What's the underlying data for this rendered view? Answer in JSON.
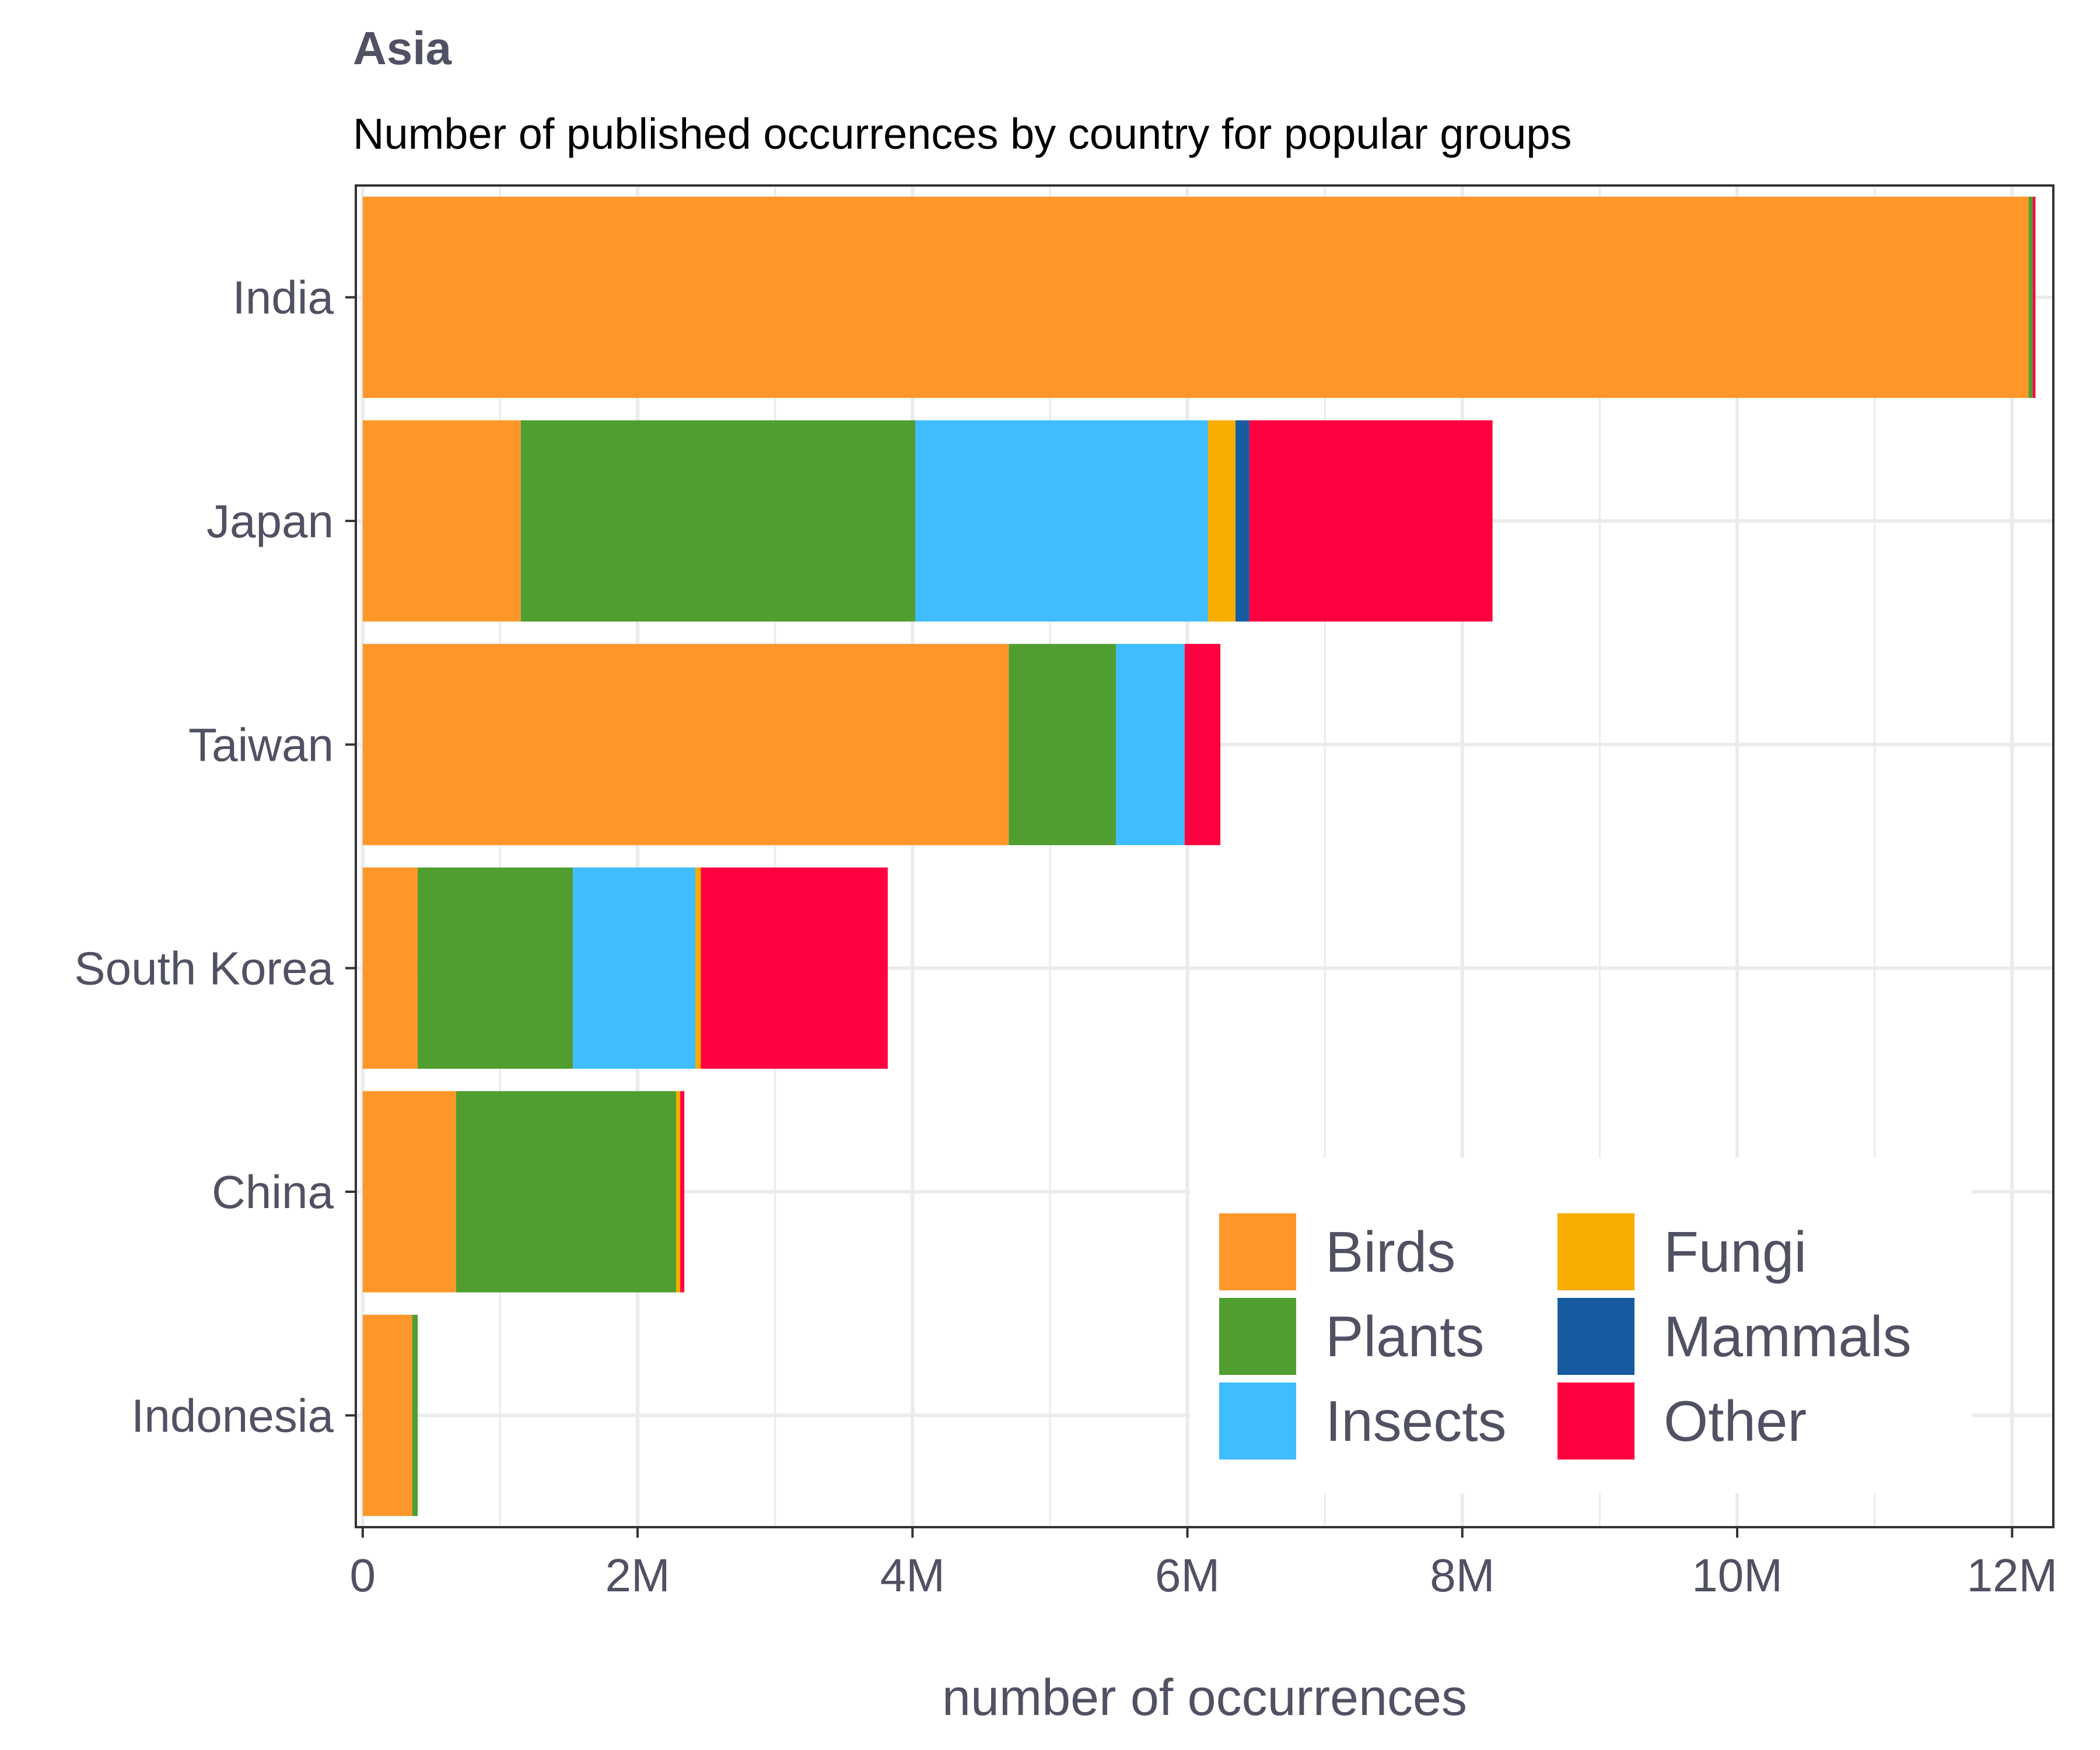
{
  "chart_data": {
    "type": "bar",
    "orientation": "horizontal",
    "stacked": true,
    "title": "Asia",
    "subtitle": "Number of published occurrences by country for popular groups",
    "xlabel": "number of occurrences",
    "ylabel": "",
    "xlim": [
      0,
      12300000
    ],
    "x_ticks": [
      {
        "value": 0,
        "label": "0"
      },
      {
        "value": 2000000,
        "label": "2M"
      },
      {
        "value": 4000000,
        "label": "4M"
      },
      {
        "value": 6000000,
        "label": "6M"
      },
      {
        "value": 8000000,
        "label": "8M"
      },
      {
        "value": 10000000,
        "label": "10M"
      },
      {
        "value": 12000000,
        "label": "12M"
      }
    ],
    "categories": [
      "India",
      "Japan",
      "Taiwan",
      "South Korea",
      "China",
      "Indonesia"
    ],
    "series": [
      {
        "name": "Birds",
        "color": "#FF962A",
        "values": [
          12120000,
          1150000,
          4700000,
          400000,
          680000,
          360000
        ]
      },
      {
        "name": "Plants",
        "color": "#509E2F",
        "values": [
          30000,
          2870000,
          780000,
          1130000,
          1600000,
          40000
        ]
      },
      {
        "name": "Insects",
        "color": "#3FBDFF",
        "values": [
          0,
          2130000,
          500000,
          890000,
          0,
          0
        ]
      },
      {
        "name": "Fungi",
        "color": "#F7AE00",
        "values": [
          0,
          200000,
          0,
          40000,
          30000,
          0
        ]
      },
      {
        "name": "Mammals",
        "color": "#175CA1",
        "values": [
          0,
          100000,
          0,
          0,
          0,
          0
        ]
      },
      {
        "name": "Other",
        "color": "#FF0040",
        "values": [
          20000,
          1770000,
          260000,
          1360000,
          30000,
          0
        ]
      }
    ],
    "grid": true,
    "legend": {
      "position": "bottom-right",
      "columns": 2
    }
  }
}
